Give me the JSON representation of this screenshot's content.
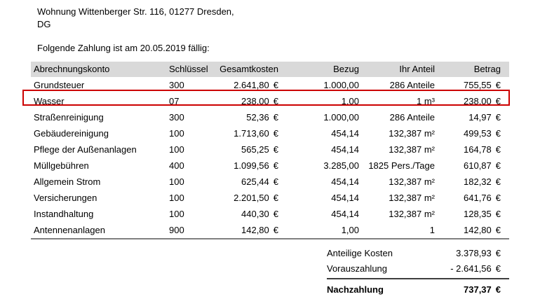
{
  "document": {
    "address_line1": "Wohnung Wittenberger Str. 116, 01277 Dresden,",
    "address_line2": "DG",
    "due_notice": "Folgende Zahlung ist am 20.05.2019 fällig:"
  },
  "table": {
    "columns": [
      "Abrechnungskonto",
      "Schlüssel",
      "Gesamtkosten",
      "Bezug",
      "Ihr Anteil",
      "Betrag"
    ],
    "currency_symbol": "€",
    "rows": [
      {
        "konto": "Grundsteuer",
        "schluessel": "300",
        "gesamtkosten": "2.641,80",
        "bezug": "1.000,00",
        "anteil": "286 Anteile",
        "betrag": "755,55",
        "highlighted": false
      },
      {
        "konto": "Wasser",
        "schluessel": "07",
        "gesamtkosten": "238,00",
        "bezug": "1,00",
        "anteil": "1 m³",
        "betrag": "238,00",
        "highlighted": true
      },
      {
        "konto": "Straßenreinigung",
        "schluessel": "300",
        "gesamtkosten": "52,36",
        "bezug": "1.000,00",
        "anteil": "286 Anteile",
        "betrag": "14,97",
        "highlighted": false
      },
      {
        "konto": "Gebäudereinigung",
        "schluessel": "100",
        "gesamtkosten": "1.713,60",
        "bezug": "454,14",
        "anteil": "132,387 m²",
        "betrag": "499,53",
        "highlighted": false
      },
      {
        "konto": "Pflege der Außenanlagen",
        "schluessel": "100",
        "gesamtkosten": "565,25",
        "bezug": "454,14",
        "anteil": "132,387 m²",
        "betrag": "164,78",
        "highlighted": false
      },
      {
        "konto": "Müllgebühren",
        "schluessel": "400",
        "gesamtkosten": "1.099,56",
        "bezug": "3.285,00",
        "anteil": "1825 Pers./Tage",
        "betrag": "610,87",
        "highlighted": false
      },
      {
        "konto": "Allgemein Strom",
        "schluessel": "100",
        "gesamtkosten": "625,44",
        "bezug": "454,14",
        "anteil": "132,387 m²",
        "betrag": "182,32",
        "highlighted": false
      },
      {
        "konto": "Versicherungen",
        "schluessel": "100",
        "gesamtkosten": "2.201,50",
        "bezug": "454,14",
        "anteil": "132,387 m²",
        "betrag": "641,76",
        "highlighted": false
      },
      {
        "konto": "Instandhaltung",
        "schluessel": "100",
        "gesamtkosten": "440,30",
        "bezug": "454,14",
        "anteil": "132,387 m²",
        "betrag": "128,35",
        "highlighted": false
      },
      {
        "konto": "Antennenanlagen",
        "schluessel": "900",
        "gesamtkosten": "142,80",
        "bezug": "1,00",
        "anteil": "1",
        "betrag": "142,80",
        "highlighted": false
      }
    ]
  },
  "summary": {
    "items": [
      {
        "label": "Anteilige Kosten",
        "value": "3.378,93",
        "bold": false
      },
      {
        "label": "Vorauszahlung",
        "value": "- 2.641,56",
        "bold": false
      },
      {
        "label": "Nachzahlung",
        "value": "737,37",
        "bold": true
      }
    ]
  },
  "colors": {
    "highlight_border": "#cc0000",
    "header_background": "#d9d9d9",
    "table_rule": "#7f7f7f",
    "total_rule": "#3d3d3d"
  }
}
